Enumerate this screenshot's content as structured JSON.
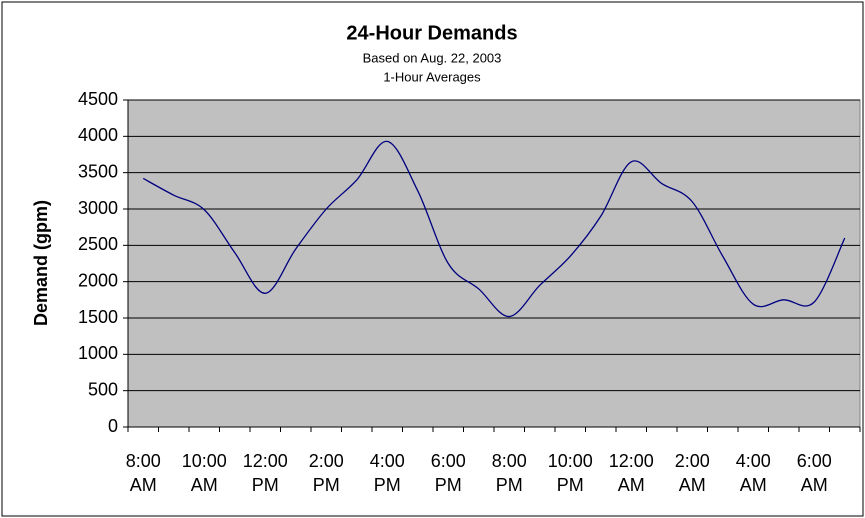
{
  "chart_data": {
    "type": "line",
    "title": "24-Hour Demands",
    "subtitles": [
      "Based on Aug. 22, 2003",
      "1-Hour Averages"
    ],
    "y_label": "Demand (gpm)",
    "categories": [
      "8:00 AM",
      null,
      "10:00 AM",
      null,
      "12:00 PM",
      null,
      "2:00 PM",
      null,
      "4:00 PM",
      null,
      "6:00 PM",
      null,
      "8:00 PM",
      null,
      "10:00 PM",
      null,
      "12:00 AM",
      null,
      "2:00 AM",
      null,
      "4:00 AM",
      null,
      "6:00 AM",
      null
    ],
    "values": [
      3420,
      3190,
      2990,
      2400,
      1840,
      2450,
      3000,
      3400,
      3930,
      3250,
      2250,
      1900,
      1520,
      1950,
      2350,
      2900,
      3650,
      3350,
      3100,
      2350,
      1690,
      1750,
      1720,
      2600
    ],
    "color": "#000080",
    "ylim": [
      0,
      4500
    ],
    "yticks": [
      0,
      500,
      1000,
      1500,
      2000,
      2500,
      3000,
      3500,
      4000,
      4500
    ],
    "grid": true
  }
}
